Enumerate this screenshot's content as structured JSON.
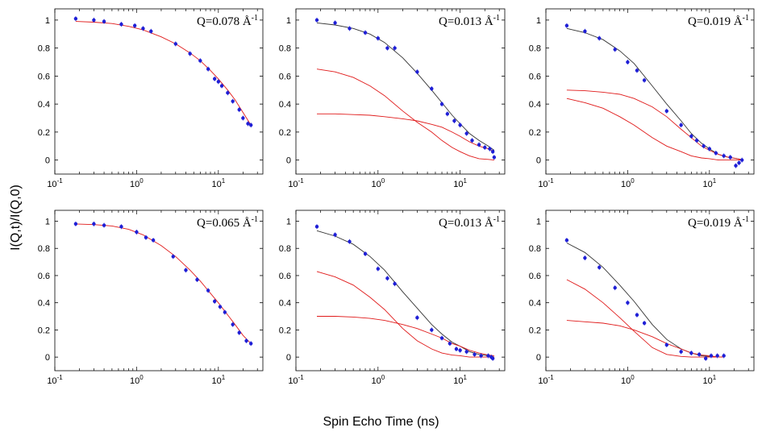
{
  "figure": {
    "ylabel": "I(Q,t)/I(Q,0)",
    "xlabel": "Spin Echo Time (ns)"
  },
  "colors": {
    "data": "#1f1fd6",
    "fit": "#e01a1a",
    "total": "#333333",
    "axis": "#000000"
  },
  "chart_data": [
    {
      "type": "scatter",
      "title": "Q=0.078 Å",
      "title_sup": "-1",
      "xscale": "log",
      "xlim": [
        0.1,
        35
      ],
      "ylim": [
        -0.1,
        1.08
      ],
      "xticks": [
        {
          "v": 0.1,
          "b": "10",
          "e": "-1"
        },
        {
          "v": 1,
          "b": "10",
          "e": "0"
        },
        {
          "v": 10,
          "b": "10",
          "e": "1"
        }
      ],
      "yticks": [
        0,
        0.2,
        0.4,
        0.6,
        0.8,
        1
      ],
      "points": [
        [
          0.18,
          1.01
        ],
        [
          0.3,
          1.0
        ],
        [
          0.4,
          0.99
        ],
        [
          0.65,
          0.97
        ],
        [
          0.95,
          0.96
        ],
        [
          1.2,
          0.94
        ],
        [
          1.5,
          0.92
        ],
        [
          3.0,
          0.83
        ],
        [
          4.5,
          0.76
        ],
        [
          6.0,
          0.71
        ],
        [
          7.5,
          0.65
        ],
        [
          9.0,
          0.58
        ],
        [
          10.0,
          0.56
        ],
        [
          11.0,
          0.53
        ],
        [
          13.0,
          0.48
        ],
        [
          15.0,
          0.42
        ],
        [
          18.0,
          0.36
        ],
        [
          20.0,
          0.3
        ],
        [
          23.0,
          0.26
        ],
        [
          25.0,
          0.25
        ]
      ],
      "curves": [
        {
          "name": "fit",
          "color": "red",
          "x": [
            0.18,
            0.3,
            0.5,
            0.8,
            1.2,
            2,
            3,
            4.5,
            6,
            8,
            10,
            13,
            16,
            20,
            25
          ],
          "y": [
            0.99,
            0.985,
            0.975,
            0.955,
            0.93,
            0.88,
            0.83,
            0.765,
            0.71,
            0.64,
            0.58,
            0.5,
            0.43,
            0.34,
            0.25
          ]
        }
      ]
    },
    {
      "type": "scatter",
      "title": "Q=0.013 Å",
      "title_sup": "-1",
      "xscale": "log",
      "xlim": [
        0.1,
        35
      ],
      "ylim": [
        -0.1,
        1.08
      ],
      "xticks": [
        {
          "v": 0.1,
          "b": "10",
          "e": "-1"
        },
        {
          "v": 1,
          "b": "10",
          "e": "0"
        },
        {
          "v": 10,
          "b": "10",
          "e": "1"
        }
      ],
      "yticks": [
        0,
        0.2,
        0.4,
        0.6,
        0.8,
        1
      ],
      "points": [
        [
          0.18,
          1.0
        ],
        [
          0.3,
          0.98
        ],
        [
          0.45,
          0.94
        ],
        [
          0.7,
          0.91
        ],
        [
          1.0,
          0.87
        ],
        [
          1.3,
          0.8
        ],
        [
          1.6,
          0.8
        ],
        [
          3.0,
          0.63
        ],
        [
          4.5,
          0.51
        ],
        [
          6.0,
          0.4
        ],
        [
          7.0,
          0.33
        ],
        [
          8.5,
          0.28
        ],
        [
          10.0,
          0.25
        ],
        [
          12.0,
          0.19
        ],
        [
          14.0,
          0.14
        ],
        [
          17.0,
          0.11
        ],
        [
          20.0,
          0.09
        ],
        [
          23.0,
          0.08
        ],
        [
          25.0,
          0.06
        ],
        [
          26.0,
          0.02
        ]
      ],
      "curves": [
        {
          "name": "total",
          "color": "black",
          "x": [
            0.18,
            0.3,
            0.5,
            0.8,
            1.2,
            2,
            3,
            4.5,
            6,
            8,
            10,
            13,
            17,
            22,
            26
          ],
          "y": [
            0.98,
            0.965,
            0.94,
            0.9,
            0.84,
            0.73,
            0.62,
            0.5,
            0.41,
            0.32,
            0.26,
            0.19,
            0.14,
            0.1,
            0.07
          ]
        },
        {
          "name": "fast",
          "color": "red",
          "x": [
            0.18,
            0.3,
            0.5,
            0.8,
            1.2,
            2,
            3,
            4.5,
            6,
            8,
            10,
            13,
            17,
            22,
            26
          ],
          "y": [
            0.65,
            0.63,
            0.59,
            0.53,
            0.46,
            0.35,
            0.27,
            0.2,
            0.14,
            0.09,
            0.06,
            0.03,
            0.01,
            0.005,
            0.0
          ]
        },
        {
          "name": "slow",
          "color": "red",
          "x": [
            0.18,
            0.3,
            0.5,
            0.8,
            1.2,
            2,
            3,
            4.5,
            6,
            8,
            10,
            13,
            17,
            22,
            26
          ],
          "y": [
            0.33,
            0.33,
            0.325,
            0.32,
            0.31,
            0.295,
            0.28,
            0.255,
            0.235,
            0.2,
            0.17,
            0.13,
            0.1,
            0.08,
            0.06
          ]
        }
      ]
    },
    {
      "type": "scatter",
      "title": "Q=0.019 Å",
      "title_sup": "-1",
      "xscale": "log",
      "xlim": [
        0.1,
        35
      ],
      "ylim": [
        -0.1,
        1.08
      ],
      "xticks": [
        {
          "v": 0.1,
          "b": "10",
          "e": "-1"
        },
        {
          "v": 1,
          "b": "10",
          "e": "0"
        },
        {
          "v": 10,
          "b": "10",
          "e": "1"
        }
      ],
      "yticks": [
        0,
        0.2,
        0.4,
        0.6,
        0.8,
        1
      ],
      "points": [
        [
          0.18,
          0.96
        ],
        [
          0.3,
          0.92
        ],
        [
          0.45,
          0.87
        ],
        [
          0.7,
          0.79
        ],
        [
          1.0,
          0.7
        ],
        [
          1.3,
          0.64
        ],
        [
          1.6,
          0.57
        ],
        [
          3.0,
          0.35
        ],
        [
          4.5,
          0.25
        ],
        [
          6.0,
          0.17
        ],
        [
          7.0,
          0.14
        ],
        [
          8.5,
          0.1
        ],
        [
          10.0,
          0.08
        ],
        [
          12.0,
          0.05
        ],
        [
          15.0,
          0.03
        ],
        [
          18.0,
          0.02
        ],
        [
          21.0,
          -0.04
        ],
        [
          23.0,
          -0.02
        ],
        [
          25.0,
          0.0
        ]
      ],
      "curves": [
        {
          "name": "total",
          "color": "black",
          "x": [
            0.18,
            0.3,
            0.5,
            0.8,
            1.2,
            2,
            3,
            4.5,
            6,
            8,
            10,
            13,
            17,
            22,
            26
          ],
          "y": [
            0.94,
            0.91,
            0.86,
            0.78,
            0.69,
            0.53,
            0.4,
            0.28,
            0.19,
            0.12,
            0.08,
            0.04,
            0.02,
            0.01,
            0.0
          ]
        },
        {
          "name": "fast",
          "color": "red",
          "x": [
            0.18,
            0.3,
            0.5,
            0.8,
            1.2,
            2,
            3,
            4.5,
            6,
            8,
            10,
            13,
            17,
            22,
            26
          ],
          "y": [
            0.44,
            0.41,
            0.37,
            0.31,
            0.25,
            0.16,
            0.1,
            0.06,
            0.03,
            0.015,
            0.01,
            0.0,
            0.0,
            0.0,
            0.0
          ]
        },
        {
          "name": "slow",
          "color": "red",
          "x": [
            0.18,
            0.3,
            0.5,
            0.8,
            1.2,
            2,
            3,
            4.5,
            6,
            8,
            10,
            13,
            17,
            22,
            26
          ],
          "y": [
            0.5,
            0.495,
            0.485,
            0.47,
            0.44,
            0.38,
            0.31,
            0.22,
            0.16,
            0.1,
            0.07,
            0.04,
            0.02,
            0.01,
            0.0
          ]
        }
      ]
    },
    {
      "type": "scatter",
      "title": "Q=0.065 Å",
      "title_sup": "-1",
      "xscale": "log",
      "xlim": [
        0.1,
        35
      ],
      "ylim": [
        -0.1,
        1.08
      ],
      "xticks": [
        {
          "v": 0.1,
          "b": "10",
          "e": "-1"
        },
        {
          "v": 1,
          "b": "10",
          "e": "0"
        },
        {
          "v": 10,
          "b": "10",
          "e": "1"
        }
      ],
      "yticks": [
        0,
        0.2,
        0.4,
        0.6,
        0.8,
        1
      ],
      "points": [
        [
          0.18,
          0.98
        ],
        [
          0.3,
          0.98
        ],
        [
          0.4,
          0.97
        ],
        [
          0.65,
          0.96
        ],
        [
          1.0,
          0.92
        ],
        [
          1.3,
          0.88
        ],
        [
          1.6,
          0.86
        ],
        [
          2.8,
          0.74
        ],
        [
          4.0,
          0.64
        ],
        [
          5.5,
          0.57
        ],
        [
          7.5,
          0.49
        ],
        [
          9.0,
          0.41
        ],
        [
          10.5,
          0.37
        ],
        [
          12.0,
          0.33
        ],
        [
          15.0,
          0.24
        ],
        [
          18.0,
          0.18
        ],
        [
          22.0,
          0.12
        ],
        [
          25.0,
          0.1
        ]
      ],
      "curves": [
        {
          "name": "fit",
          "color": "red",
          "x": [
            0.18,
            0.3,
            0.5,
            0.8,
            1.2,
            2,
            3,
            4.5,
            6,
            8,
            10,
            13,
            16,
            20,
            25
          ],
          "y": [
            0.98,
            0.975,
            0.965,
            0.94,
            0.9,
            0.82,
            0.74,
            0.64,
            0.56,
            0.47,
            0.4,
            0.31,
            0.24,
            0.16,
            0.1
          ]
        }
      ]
    },
    {
      "type": "scatter",
      "title": "Q=0.013 Å",
      "title_sup": "-1",
      "xscale": "log",
      "xlim": [
        0.1,
        35
      ],
      "ylim": [
        -0.1,
        1.08
      ],
      "xticks": [
        {
          "v": 0.1,
          "b": "10",
          "e": "-1"
        },
        {
          "v": 1,
          "b": "10",
          "e": "0"
        },
        {
          "v": 10,
          "b": "10",
          "e": "1"
        }
      ],
      "yticks": [
        0,
        0.2,
        0.4,
        0.6,
        0.8,
        1
      ],
      "points": [
        [
          0.18,
          0.96
        ],
        [
          0.3,
          0.9
        ],
        [
          0.45,
          0.85
        ],
        [
          0.7,
          0.76
        ],
        [
          1.0,
          0.65
        ],
        [
          1.3,
          0.58
        ],
        [
          1.6,
          0.54
        ],
        [
          3.0,
          0.29
        ],
        [
          4.5,
          0.2
        ],
        [
          6.0,
          0.14
        ],
        [
          7.5,
          0.1
        ],
        [
          9.0,
          0.06
        ],
        [
          10.0,
          0.05
        ],
        [
          12.0,
          0.04
        ],
        [
          15.0,
          0.02
        ],
        [
          18.0,
          0.01
        ],
        [
          22.0,
          0.01
        ],
        [
          24.0,
          0.0
        ],
        [
          25.0,
          -0.01
        ]
      ],
      "curves": [
        {
          "name": "total",
          "color": "black",
          "x": [
            0.18,
            0.3,
            0.5,
            0.8,
            1.2,
            2,
            3,
            4.5,
            6,
            8,
            10,
            13,
            17,
            22,
            26
          ],
          "y": [
            0.93,
            0.89,
            0.83,
            0.74,
            0.64,
            0.48,
            0.36,
            0.24,
            0.17,
            0.11,
            0.08,
            0.04,
            0.02,
            0.01,
            0.0
          ]
        },
        {
          "name": "fast",
          "color": "red",
          "x": [
            0.18,
            0.3,
            0.5,
            0.8,
            1.2,
            2,
            3,
            4.5,
            6,
            8,
            10,
            13,
            17,
            22,
            26
          ],
          "y": [
            0.63,
            0.59,
            0.53,
            0.44,
            0.35,
            0.21,
            0.12,
            0.06,
            0.03,
            0.015,
            0.01,
            0.0,
            0.0,
            0.0,
            0.0
          ]
        },
        {
          "name": "slow",
          "color": "red",
          "x": [
            0.18,
            0.3,
            0.5,
            0.8,
            1.2,
            2,
            3,
            4.5,
            6,
            8,
            10,
            13,
            17,
            22,
            26
          ],
          "y": [
            0.3,
            0.3,
            0.295,
            0.285,
            0.27,
            0.24,
            0.21,
            0.17,
            0.14,
            0.1,
            0.08,
            0.05,
            0.03,
            0.015,
            0.01
          ]
        }
      ]
    },
    {
      "type": "scatter",
      "title": "Q=0.019 Å",
      "title_sup": "-1",
      "xscale": "log",
      "xlim": [
        0.1,
        35
      ],
      "ylim": [
        -0.1,
        1.08
      ],
      "xticks": [
        {
          "v": 0.1,
          "b": "10",
          "e": "-1"
        },
        {
          "v": 1,
          "b": "10",
          "e": "0"
        },
        {
          "v": 10,
          "b": "10",
          "e": "1"
        }
      ],
      "yticks": [
        0,
        0.2,
        0.4,
        0.6,
        0.8,
        1
      ],
      "points": [
        [
          0.18,
          0.86
        ],
        [
          0.3,
          0.73
        ],
        [
          0.45,
          0.66
        ],
        [
          0.7,
          0.51
        ],
        [
          1.0,
          0.4
        ],
        [
          1.3,
          0.31
        ],
        [
          1.6,
          0.25
        ],
        [
          3.0,
          0.09
        ],
        [
          4.5,
          0.04
        ],
        [
          6.0,
          0.03
        ],
        [
          7.5,
          0.02
        ],
        [
          9.0,
          -0.01
        ],
        [
          10.5,
          0.01
        ],
        [
          12.5,
          0.01
        ],
        [
          15.0,
          0.01
        ]
      ],
      "curves": [
        {
          "name": "total",
          "color": "black",
          "x": [
            0.18,
            0.3,
            0.5,
            0.8,
            1.2,
            2,
            3,
            4.5,
            6,
            8,
            10,
            13,
            15
          ],
          "y": [
            0.84,
            0.77,
            0.66,
            0.53,
            0.41,
            0.24,
            0.13,
            0.06,
            0.03,
            0.01,
            0.005,
            0.0,
            0.0
          ]
        },
        {
          "name": "fast",
          "color": "red",
          "x": [
            0.18,
            0.3,
            0.5,
            0.8,
            1.2,
            2,
            3,
            4.5,
            6,
            8,
            10,
            13,
            15
          ],
          "y": [
            0.57,
            0.5,
            0.4,
            0.29,
            0.19,
            0.07,
            0.02,
            0.005,
            0.0,
            0.0,
            0.0,
            0.0,
            0.0
          ]
        },
        {
          "name": "slow",
          "color": "red",
          "x": [
            0.18,
            0.3,
            0.5,
            0.8,
            1.2,
            2,
            3,
            4.5,
            6,
            8,
            10,
            13,
            15
          ],
          "y": [
            0.27,
            0.26,
            0.25,
            0.23,
            0.2,
            0.15,
            0.1,
            0.06,
            0.03,
            0.015,
            0.01,
            0.0,
            0.0
          ]
        }
      ]
    }
  ]
}
